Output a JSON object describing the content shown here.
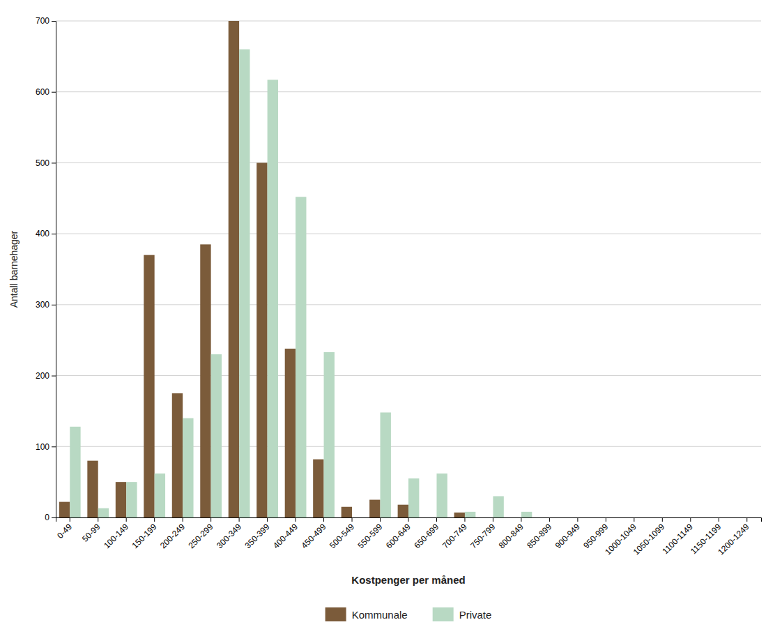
{
  "chart_data": {
    "type": "bar",
    "xlabel": "Kostpenger per måned",
    "ylabel": "Antall barnehager",
    "categories": [
      "0-49",
      "50-99",
      "100-149",
      "150-199",
      "200-249",
      "250-299",
      "300-349",
      "350-399",
      "400-449",
      "450-499",
      "500-549",
      "550-599",
      "600-649",
      "650-699",
      "700-749",
      "750-799",
      "800-849",
      "850-899",
      "900-949",
      "950-999",
      "1000-1049",
      "1050-1099",
      "1100-1149",
      "1150-1199",
      "1200-1249"
    ],
    "series": [
      {
        "name": "Kommunale",
        "color": "#7B5B3A",
        "values": [
          22,
          80,
          50,
          370,
          175,
          385,
          700,
          500,
          238,
          82,
          15,
          25,
          18,
          0,
          7,
          0,
          0,
          0,
          0,
          0,
          0,
          0,
          0,
          0,
          0
        ]
      },
      {
        "name": "Private",
        "color": "#B8D9C3",
        "values": [
          128,
          13,
          50,
          62,
          140,
          230,
          660,
          617,
          452,
          233,
          0,
          148,
          55,
          62,
          8,
          30,
          8,
          0,
          0,
          0,
          0,
          0,
          0,
          0,
          0
        ]
      }
    ],
    "ylim": [
      0,
      700
    ],
    "yticks": [
      0,
      100,
      200,
      300,
      400,
      500,
      600,
      700
    ],
    "grid": true,
    "legend": "bottom"
  }
}
